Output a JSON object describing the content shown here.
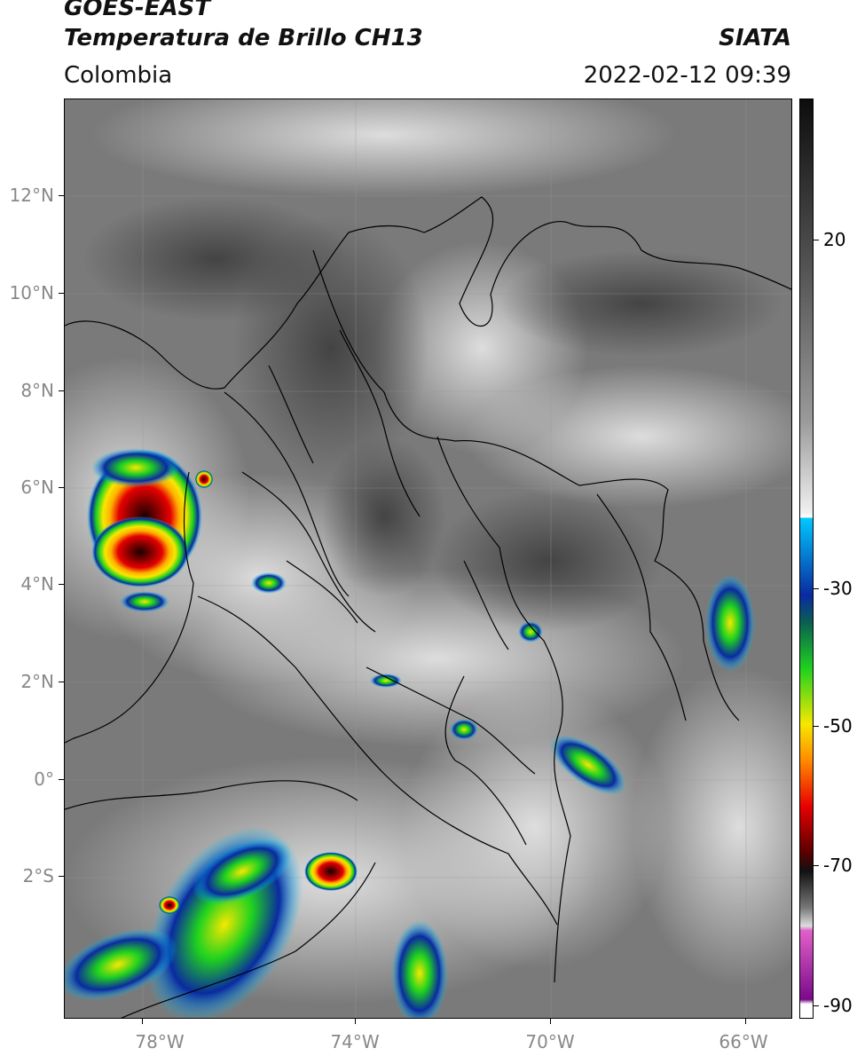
{
  "header": {
    "title_line1": "GOES-EAST",
    "title_line2": "Temperatura de Brillo CH13",
    "organization": "SIATA",
    "region": "Colombia",
    "timestamp": "2022-02-12 09:39"
  },
  "map": {
    "lat_ticks": [
      "12°N",
      "10°N",
      "8°N",
      "6°N",
      "4°N",
      "2°N",
      "0°",
      "2°S"
    ],
    "lon_ticks": [
      "78°W",
      "74°W",
      "70°W",
      "66°W"
    ],
    "lat_range": [
      -4.9,
      14.0
    ],
    "lon_range": [
      -79.6,
      -64.7
    ],
    "background_color": "#7a7a7a"
  },
  "colorbar": {
    "tick_labels": [
      "20",
      "-30",
      "-50",
      "-70",
      "-90"
    ],
    "tick_values": [
      20,
      -30,
      -50,
      -70,
      -90
    ],
    "range": [
      -92,
      35
    ],
    "colors": {
      "warm": "#0d0d0d",
      "cold_gray": "#f0f0f0",
      "cyan": "#00c8ff",
      "blue": "#0a2aa0",
      "green": "#1fd21f",
      "yellow": "#f6e800",
      "orange": "#ff8a00",
      "red": "#e60000",
      "dark_red": "#5a0000",
      "pink": "#e060c8",
      "purple": "#7a0a8a"
    }
  }
}
